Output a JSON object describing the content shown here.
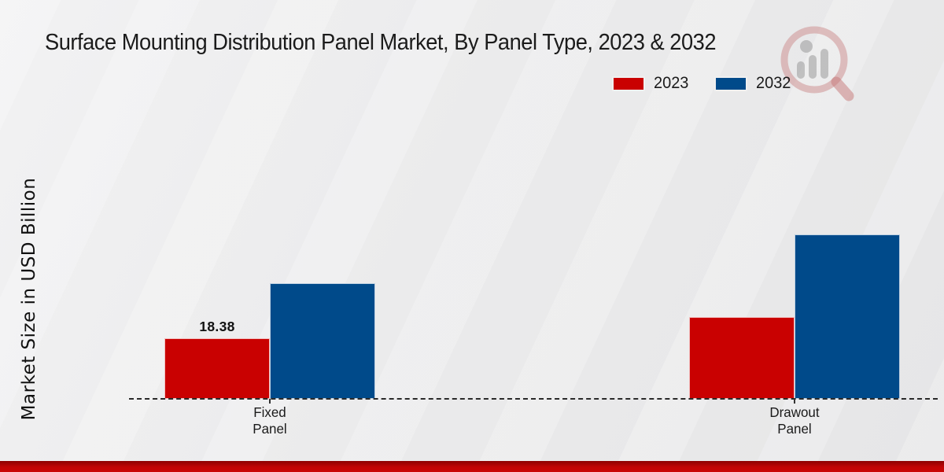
{
  "header": {
    "title": "Surface Mounting Distribution Panel Market, By Panel Type, 2023 & 2032"
  },
  "legend": {
    "items": [
      {
        "label": "2023",
        "color": "#c90101"
      },
      {
        "label": "2032",
        "color": "#004a8a"
      }
    ]
  },
  "axes": {
    "y_label": "Market Size in USD Billion"
  },
  "xaxis": {
    "categories_display": [
      {
        "line1": "Fixed",
        "line2": "Panel"
      },
      {
        "line1": "Drawout",
        "line2": "Panel"
      }
    ]
  },
  "annotations": {
    "fixed_panel_2023_value": "18.38"
  },
  "watermark": {
    "icon": "magnifier-bar-chart-logo"
  },
  "chart_data": {
    "type": "bar",
    "title": "Surface Mounting Distribution Panel Market, By Panel Type, 2023 & 2032",
    "xlabel": "",
    "ylabel": "Market Size in USD Billion",
    "categories": [
      "Fixed Panel",
      "Drawout Panel"
    ],
    "series": [
      {
        "name": "2023",
        "color": "#c90101",
        "values": [
          18.38,
          24.8
        ]
      },
      {
        "name": "2032",
        "color": "#004a8a",
        "values": [
          35.1,
          49.9
        ]
      }
    ],
    "value_labels": [
      [
        "18.38",
        ""
      ],
      [
        "",
        ""
      ]
    ],
    "ylim": [
      0,
      55
    ],
    "grid": false,
    "y_axis_ticks_visible": false,
    "legend_position": "top-right",
    "baseline_style": "dashed",
    "background": "#ebebec"
  },
  "footer": {
    "accent_color": "#c10404"
  }
}
